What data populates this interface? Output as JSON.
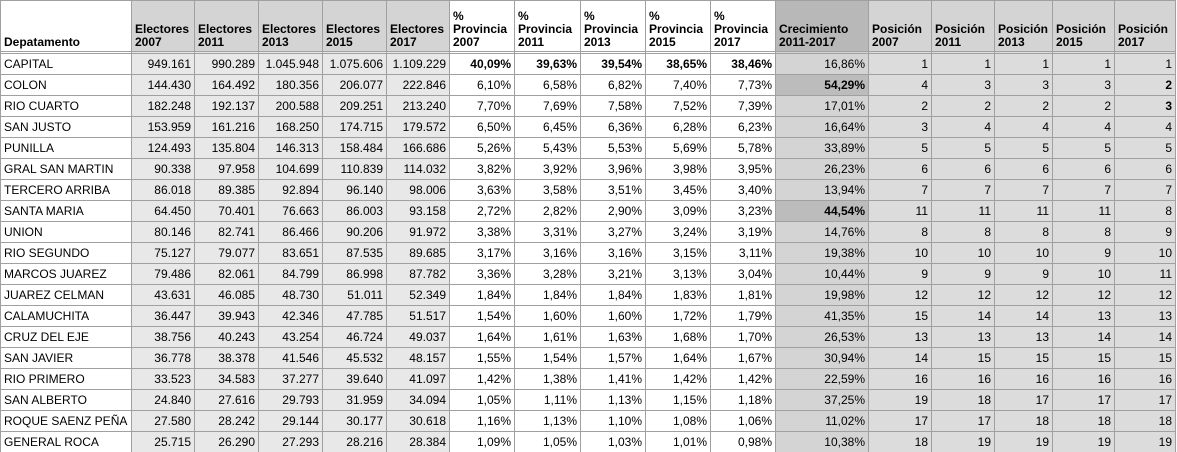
{
  "table": {
    "header": [
      "Depatamento",
      "Electores\n2007",
      "Electores\n2011",
      "Electores\n2013",
      "Electores\n2015",
      "Electores\n2017",
      "%\nProvincia\n2007",
      "%\nProvincia\n2011",
      "%\nProvincia\n2013",
      "%\nProvincia\n2015",
      "%\nProvincia\n2017",
      "Crecimiento\n2011-2017",
      "Posición\n2007",
      "Posición\n2011",
      "Posición\n2013",
      "Posición\n2015",
      "Posición\n2017"
    ],
    "rows": [
      [
        "CAPITAL",
        "949.161",
        "990.289",
        "1.045.948",
        "1.075.606",
        "1.109.229",
        "40,09%",
        "39,63%",
        "39,54%",
        "38,65%",
        "38,46%",
        "16,86%",
        "1",
        "1",
        "1",
        "1",
        "1"
      ],
      [
        "COLON",
        "144.430",
        "164.492",
        "180.356",
        "206.077",
        "222.846",
        "6,10%",
        "6,58%",
        "6,82%",
        "7,40%",
        "7,73%",
        "54,29%",
        "4",
        "3",
        "3",
        "3",
        "2"
      ],
      [
        "RIO CUARTO",
        "182.248",
        "192.137",
        "200.588",
        "209.251",
        "213.240",
        "7,70%",
        "7,69%",
        "7,58%",
        "7,52%",
        "7,39%",
        "17,01%",
        "2",
        "2",
        "2",
        "2",
        "3"
      ],
      [
        "SAN JUSTO",
        "153.959",
        "161.216",
        "168.250",
        "174.715",
        "179.572",
        "6,50%",
        "6,45%",
        "6,36%",
        "6,28%",
        "6,23%",
        "16,64%",
        "3",
        "4",
        "4",
        "4",
        "4"
      ],
      [
        "PUNILLA",
        "124.493",
        "135.804",
        "146.313",
        "158.484",
        "166.686",
        "5,26%",
        "5,43%",
        "5,53%",
        "5,69%",
        "5,78%",
        "33,89%",
        "5",
        "5",
        "5",
        "5",
        "5"
      ],
      [
        "GRAL SAN MARTIN",
        "90.338",
        "97.958",
        "104.699",
        "110.839",
        "114.032",
        "3,82%",
        "3,92%",
        "3,96%",
        "3,98%",
        "3,95%",
        "26,23%",
        "6",
        "6",
        "6",
        "6",
        "6"
      ],
      [
        "TERCERO ARRIBA",
        "86.018",
        "89.385",
        "92.894",
        "96.140",
        "98.006",
        "3,63%",
        "3,58%",
        "3,51%",
        "3,45%",
        "3,40%",
        "13,94%",
        "7",
        "7",
        "7",
        "7",
        "7"
      ],
      [
        "SANTA MARIA",
        "64.450",
        "70.401",
        "76.663",
        "86.003",
        "93.158",
        "2,72%",
        "2,82%",
        "2,90%",
        "3,09%",
        "3,23%",
        "44,54%",
        "11",
        "11",
        "11",
        "11",
        "8"
      ],
      [
        "UNION",
        "80.146",
        "82.741",
        "86.466",
        "90.206",
        "91.972",
        "3,38%",
        "3,31%",
        "3,27%",
        "3,24%",
        "3,19%",
        "14,76%",
        "8",
        "8",
        "8",
        "8",
        "9"
      ],
      [
        "RIO SEGUNDO",
        "75.127",
        "79.077",
        "83.651",
        "87.535",
        "89.685",
        "3,17%",
        "3,16%",
        "3,16%",
        "3,15%",
        "3,11%",
        "19,38%",
        "10",
        "10",
        "10",
        "9",
        "10"
      ],
      [
        "MARCOS JUAREZ",
        "79.486",
        "82.061",
        "84.799",
        "86.998",
        "87.782",
        "3,36%",
        "3,28%",
        "3,21%",
        "3,13%",
        "3,04%",
        "10,44%",
        "9",
        "9",
        "9",
        "10",
        "11"
      ],
      [
        "JUAREZ CELMAN",
        "43.631",
        "46.085",
        "48.730",
        "51.011",
        "52.349",
        "1,84%",
        "1,84%",
        "1,84%",
        "1,83%",
        "1,81%",
        "19,98%",
        "12",
        "12",
        "12",
        "12",
        "12"
      ],
      [
        "CALAMUCHITA",
        "36.447",
        "39.943",
        "42.346",
        "47.785",
        "51.517",
        "1,54%",
        "1,60%",
        "1,60%",
        "1,72%",
        "1,79%",
        "41,35%",
        "15",
        "14",
        "14",
        "13",
        "13"
      ],
      [
        "CRUZ DEL EJE",
        "38.756",
        "40.243",
        "43.254",
        "46.724",
        "49.037",
        "1,64%",
        "1,61%",
        "1,63%",
        "1,68%",
        "1,70%",
        "26,53%",
        "13",
        "13",
        "13",
        "14",
        "14"
      ],
      [
        "SAN JAVIER",
        "36.778",
        "38.378",
        "41.546",
        "45.532",
        "48.157",
        "1,55%",
        "1,54%",
        "1,57%",
        "1,64%",
        "1,67%",
        "30,94%",
        "14",
        "15",
        "15",
        "15",
        "15"
      ],
      [
        "RIO PRIMERO",
        "33.523",
        "34.583",
        "37.277",
        "39.640",
        "41.097",
        "1,42%",
        "1,38%",
        "1,41%",
        "1,42%",
        "1,42%",
        "22,59%",
        "16",
        "16",
        "16",
        "16",
        "16"
      ],
      [
        "SAN ALBERTO",
        "24.840",
        "27.616",
        "29.793",
        "31.959",
        "34.094",
        "1,05%",
        "1,11%",
        "1,13%",
        "1,15%",
        "1,18%",
        "37,25%",
        "19",
        "18",
        "17",
        "17",
        "17"
      ],
      [
        "ROQUE SAENZ PEÑA",
        "27.580",
        "28.242",
        "29.144",
        "30.177",
        "30.618",
        "1,16%",
        "1,13%",
        "1,10%",
        "1,08%",
        "1,06%",
        "11,02%",
        "17",
        "17",
        "18",
        "18",
        "18"
      ],
      [
        "GENERAL ROCA",
        "25.715",
        "26.290",
        "27.293",
        "28.216",
        "28.384",
        "1,09%",
        "1,05%",
        "1,03%",
        "1,01%",
        "0,98%",
        "10,38%",
        "18",
        "19",
        "19",
        "19",
        "19"
      ]
    ],
    "bold_cells": [
      [
        0,
        6
      ],
      [
        0,
        7
      ],
      [
        0,
        8
      ],
      [
        0,
        9
      ],
      [
        0,
        10
      ],
      [
        1,
        11
      ],
      [
        7,
        11
      ],
      [
        1,
        16
      ],
      [
        2,
        16
      ]
    ]
  }
}
